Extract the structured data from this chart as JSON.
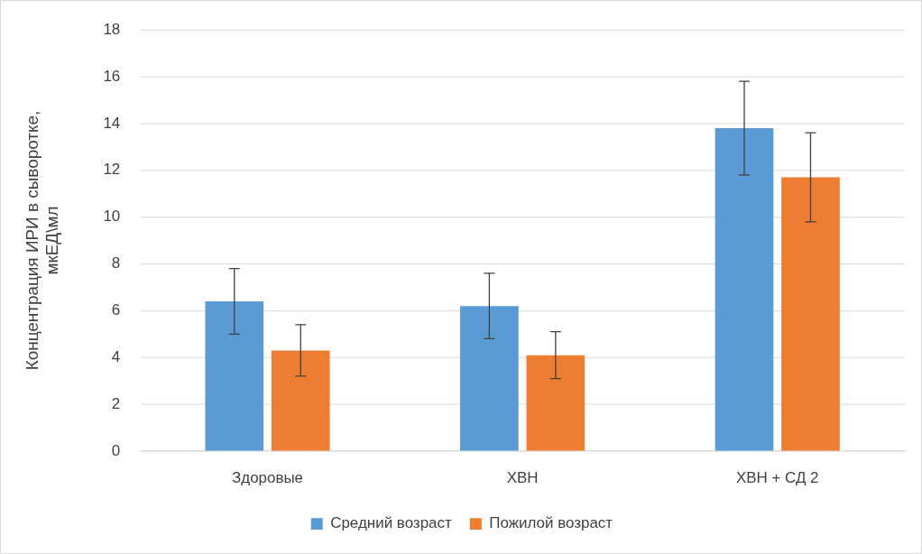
{
  "chart_data": {
    "type": "bar",
    "ylabel": "Концентрация ИРИ в сыворотке, мкЕД\\мл",
    "categories": [
      "Здоровые",
      "ХВН",
      "ХВН + СД 2"
    ],
    "series": [
      {
        "name": "Средний возраст",
        "color": "#5b9bd5",
        "values": [
          6.4,
          6.2,
          13.8
        ],
        "errors": [
          1.4,
          1.4,
          2.0
        ]
      },
      {
        "name": "Пожилой возраст",
        "color": "#ed7d31",
        "values": [
          4.3,
          4.1,
          11.7
        ],
        "errors": [
          1.1,
          1.0,
          1.9
        ]
      }
    ],
    "ylim": [
      0,
      18
    ],
    "yticks": [
      0,
      2,
      4,
      6,
      8,
      10,
      12,
      14,
      16,
      18
    ],
    "grid": "y",
    "legend": "bottom"
  }
}
